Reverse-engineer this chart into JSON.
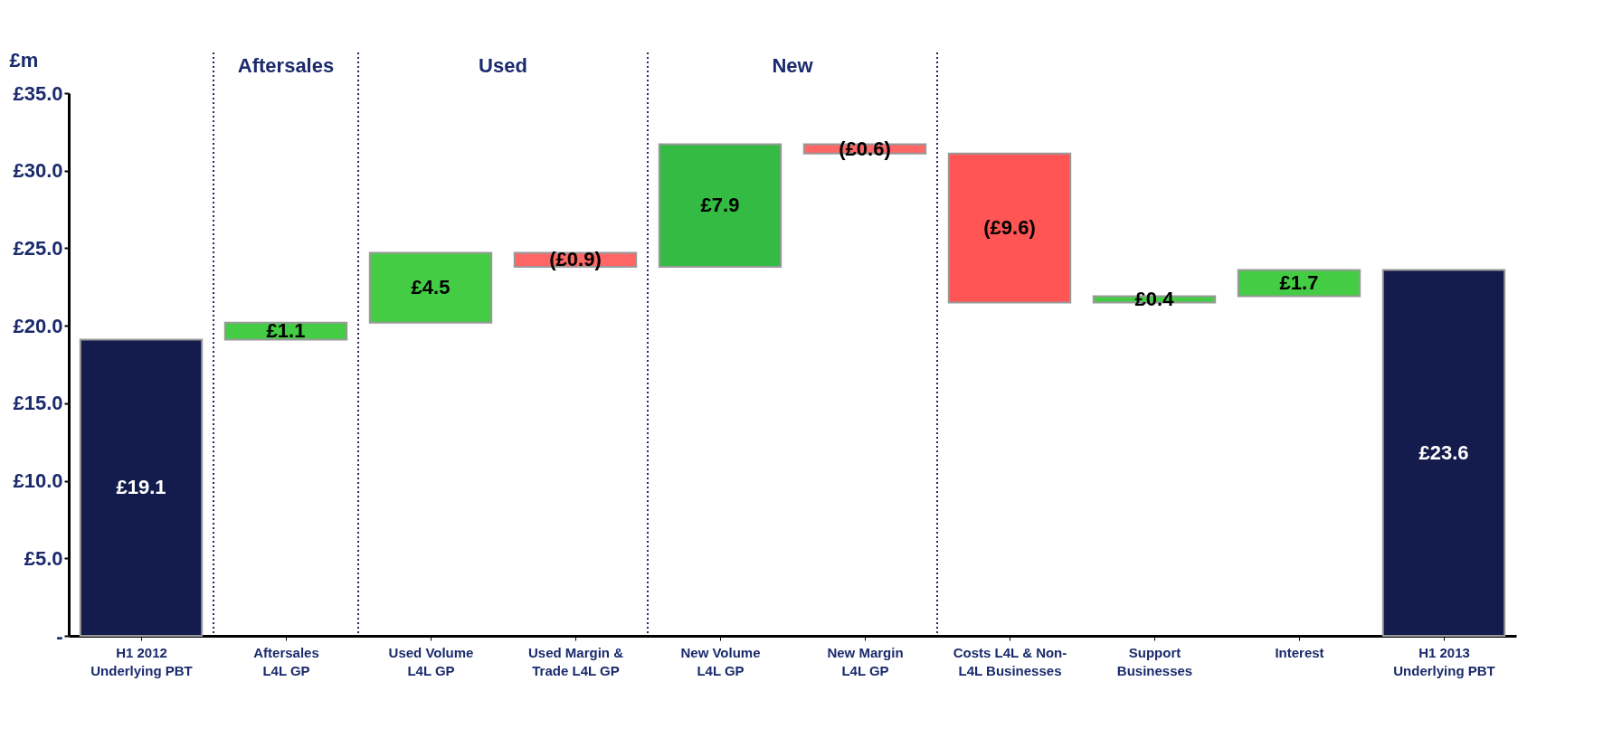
{
  "chart_data": {
    "type": "bar",
    "ylabel": "£m",
    "categories": [
      "H1 2012\nUnderlying PBT",
      "Aftersales\nL4L GP",
      "Used Volume\nL4L GP",
      "Used Margin &\nTrade L4L GP",
      "New Volume\nL4L GP",
      "New Margin\nL4L GP",
      "Costs L4L & Non-\nL4L Businesses",
      "Support\nBusinesses",
      "Interest",
      "H1 2013\nUnderlying PBT"
    ],
    "values": [
      19.1,
      1.1,
      4.5,
      -0.9,
      7.9,
      -0.6,
      -9.6,
      0.4,
      1.7,
      23.6
    ],
    "base": [
      0,
      19.1,
      20.2,
      24.7,
      23.8,
      31.7,
      31.1,
      21.5,
      21.9,
      0
    ],
    "colors": [
      "#141b4d",
      "#44cc44",
      "#44cc44",
      "#ff6666",
      "#33bb44",
      "#ff6666",
      "#ff5555",
      "#44cc44",
      "#44cc44",
      "#141b4d"
    ],
    "value_labels": [
      "£19.1",
      "£1.1",
      "£4.5",
      "(£0.9)",
      "£7.9",
      "(£0.6)",
      "(£9.6)",
      "£0.4",
      "£1.7",
      "£23.6"
    ],
    "ylim": [
      0,
      35
    ],
    "yticks": [
      {
        "value": 0,
        "label": "-"
      },
      {
        "value": 5,
        "label": "£5.0"
      },
      {
        "value": 10,
        "label": "£10.0"
      },
      {
        "value": 15,
        "label": "£15.0"
      },
      {
        "value": 20,
        "label": "£20.0"
      },
      {
        "value": 25,
        "label": "£25.0"
      },
      {
        "value": 30,
        "label": "£30.0"
      },
      {
        "value": 35,
        "label": "£35.0"
      }
    ],
    "annotations": [
      "Aftersales",
      "Used",
      "New"
    ],
    "grid": false
  }
}
